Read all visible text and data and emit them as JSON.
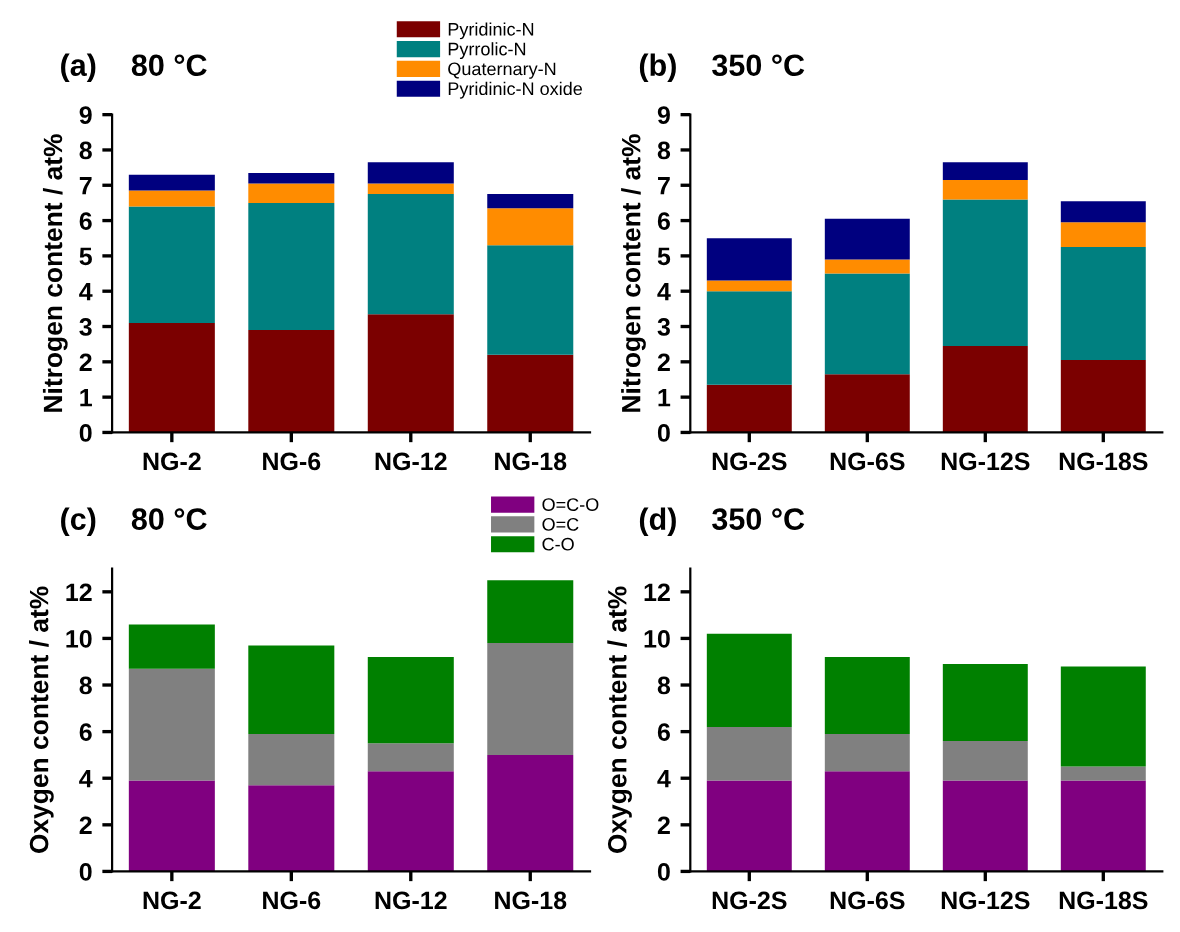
{
  "chart_data": [
    {
      "type": "bar",
      "stacked": true,
      "title": "(a)    80 °C",
      "ylabel": "Nitrogen content / at%",
      "categories": [
        "NG-2",
        "NG-6",
        "NG-12",
        "NG-18"
      ],
      "ylim": [
        0,
        9
      ],
      "yticks": [
        0,
        1,
        2,
        3,
        4,
        5,
        6,
        7,
        8,
        9
      ],
      "legend": "top right",
      "series": [
        {
          "name": "Pyridinic-N",
          "color": "#7b0000",
          "values": [
            3.1,
            2.9,
            3.35,
            2.2
          ]
        },
        {
          "name": "Pyrrolic-N",
          "color": "#008080",
          "values": [
            3.3,
            3.6,
            3.4,
            3.1
          ]
        },
        {
          "name": "Quaternary-N",
          "color": "#ff8c00",
          "values": [
            0.45,
            0.55,
            0.3,
            1.05
          ]
        },
        {
          "name": "Pyridinic-N oxide",
          "color": "#00007f",
          "values": [
            0.45,
            0.3,
            0.6,
            0.4
          ]
        }
      ]
    },
    {
      "type": "bar",
      "stacked": true,
      "title": "(b)    350 °C",
      "ylabel": "Nitrogen content / at%",
      "categories": [
        "NG-2S",
        "NG-6S",
        "NG-12S",
        "NG-18S"
      ],
      "ylim": [
        0,
        9
      ],
      "yticks": [
        0,
        1,
        2,
        3,
        4,
        5,
        6,
        7,
        8,
        9
      ],
      "series": [
        {
          "color": "#7b0000",
          "values": [
            1.35,
            1.65,
            2.45,
            2.05
          ]
        },
        {
          "color": "#008080",
          "values": [
            2.65,
            2.85,
            4.15,
            3.2
          ]
        },
        {
          "color": "#ff8c00",
          "values": [
            0.3,
            0.4,
            0.55,
            0.7
          ]
        },
        {
          "color": "#00007f",
          "values": [
            1.2,
            1.15,
            0.5,
            0.6
          ]
        }
      ]
    },
    {
      "type": "bar",
      "stacked": true,
      "title": "(c)    80 °C",
      "ylabel": "Oxygen content / at%",
      "categories": [
        "NG-2",
        "NG-6",
        "NG-12",
        "NG-18"
      ],
      "ylim": [
        0,
        13
      ],
      "yticks": [
        0,
        2,
        4,
        6,
        8,
        10,
        12
      ],
      "legend": "top right",
      "series": [
        {
          "name": "O=C-O",
          "color": "#800080",
          "values": [
            3.9,
            3.7,
            4.3,
            5.0
          ]
        },
        {
          "name": "O=C",
          "color": "#808080",
          "values": [
            4.8,
            2.2,
            1.2,
            4.8
          ]
        },
        {
          "name": "C-O",
          "color": "#008000",
          "values": [
            1.9,
            3.8,
            3.7,
            2.7
          ]
        }
      ]
    },
    {
      "type": "bar",
      "stacked": true,
      "title": "(d)    350 °C",
      "ylabel": "Oxygen content / at%",
      "categories": [
        "NG-2S",
        "NG-6S",
        "NG-12S",
        "NG-18S"
      ],
      "ylim": [
        0,
        13
      ],
      "yticks": [
        0,
        2,
        4,
        6,
        8,
        10,
        12
      ],
      "series": [
        {
          "color": "#800080",
          "values": [
            3.9,
            4.3,
            3.9,
            3.9
          ]
        },
        {
          "color": "#808080",
          "values": [
            2.3,
            1.6,
            1.7,
            0.6
          ]
        },
        {
          "color": "#008000",
          "values": [
            4.0,
            3.3,
            3.3,
            4.3
          ]
        }
      ]
    }
  ]
}
